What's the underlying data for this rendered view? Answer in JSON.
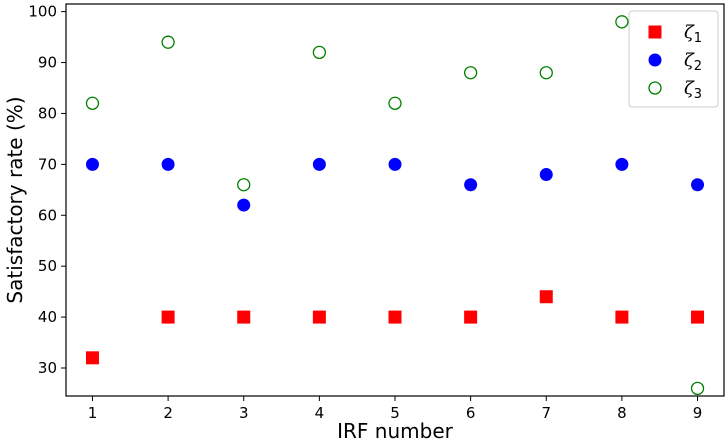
{
  "chart_data": {
    "type": "scatter",
    "title": "",
    "xlabel": "IRF number",
    "ylabel": "Satisfactory rate (%)",
    "x": [
      1,
      2,
      3,
      4,
      5,
      6,
      7,
      8,
      9
    ],
    "xticks": [
      "1",
      "2",
      "3",
      "4",
      "5",
      "6",
      "7",
      "8",
      "9"
    ],
    "yticks": [
      "30",
      "40",
      "50",
      "60",
      "70",
      "80",
      "90",
      "100"
    ],
    "xlim": [
      0.65,
      9.35
    ],
    "ylim": [
      24.5,
      101.5
    ],
    "grid": false,
    "legend_position": "top-right",
    "series": [
      {
        "name": "ζ1",
        "symbol": "ζ",
        "subscript": "1",
        "marker": "filled-square",
        "color": "#ff0000",
        "values": [
          32,
          40,
          40,
          40,
          40,
          40,
          44,
          40,
          40
        ]
      },
      {
        "name": "ζ2",
        "symbol": "ζ",
        "subscript": "2",
        "marker": "filled-circle",
        "color": "#0000ff",
        "values": [
          70,
          70,
          62,
          70,
          70,
          66,
          68,
          70,
          66
        ]
      },
      {
        "name": "ζ3",
        "symbol": "ζ",
        "subscript": "3",
        "marker": "open-circle",
        "color": "#008000",
        "values": [
          82,
          94,
          66,
          92,
          82,
          88,
          88,
          98,
          26
        ]
      }
    ]
  }
}
